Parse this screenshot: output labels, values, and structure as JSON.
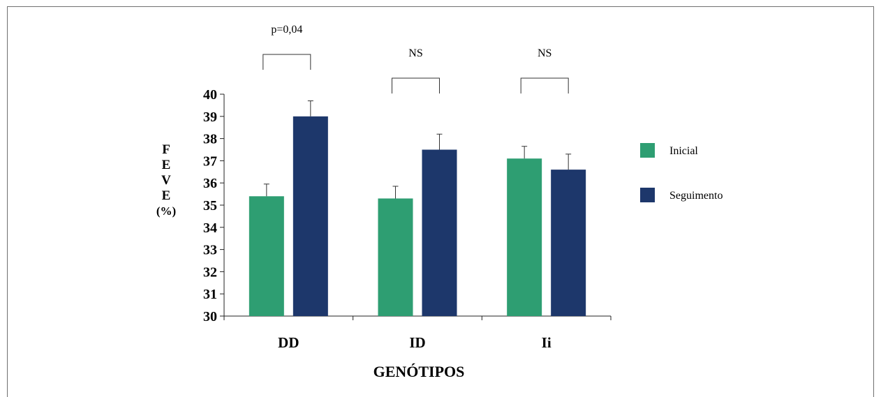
{
  "chart_data": {
    "type": "bar",
    "title": "",
    "xlabel": "GENÓTIPOS",
    "ylabel_lines": [
      "F",
      "E",
      "V",
      "E",
      "(%)"
    ],
    "categories": [
      "DD",
      "ID",
      "Ii"
    ],
    "series": [
      {
        "name": "Inicial",
        "color": "#2e9e72",
        "values": [
          35.4,
          35.3,
          37.1
        ],
        "errors": [
          0.55,
          0.55,
          0.55
        ]
      },
      {
        "name": "Seguimento",
        "color": "#1d376b",
        "values": [
          39.0,
          37.5,
          36.6
        ],
        "errors": [
          0.7,
          0.7,
          0.7
        ]
      }
    ],
    "ylim": [
      30,
      40
    ],
    "yticks": [
      30,
      31,
      32,
      33,
      34,
      35,
      36,
      37,
      38,
      39,
      40
    ],
    "significance": [
      "p=0,04",
      "NS",
      "NS"
    ],
    "grid": false,
    "legend_position": "right"
  }
}
